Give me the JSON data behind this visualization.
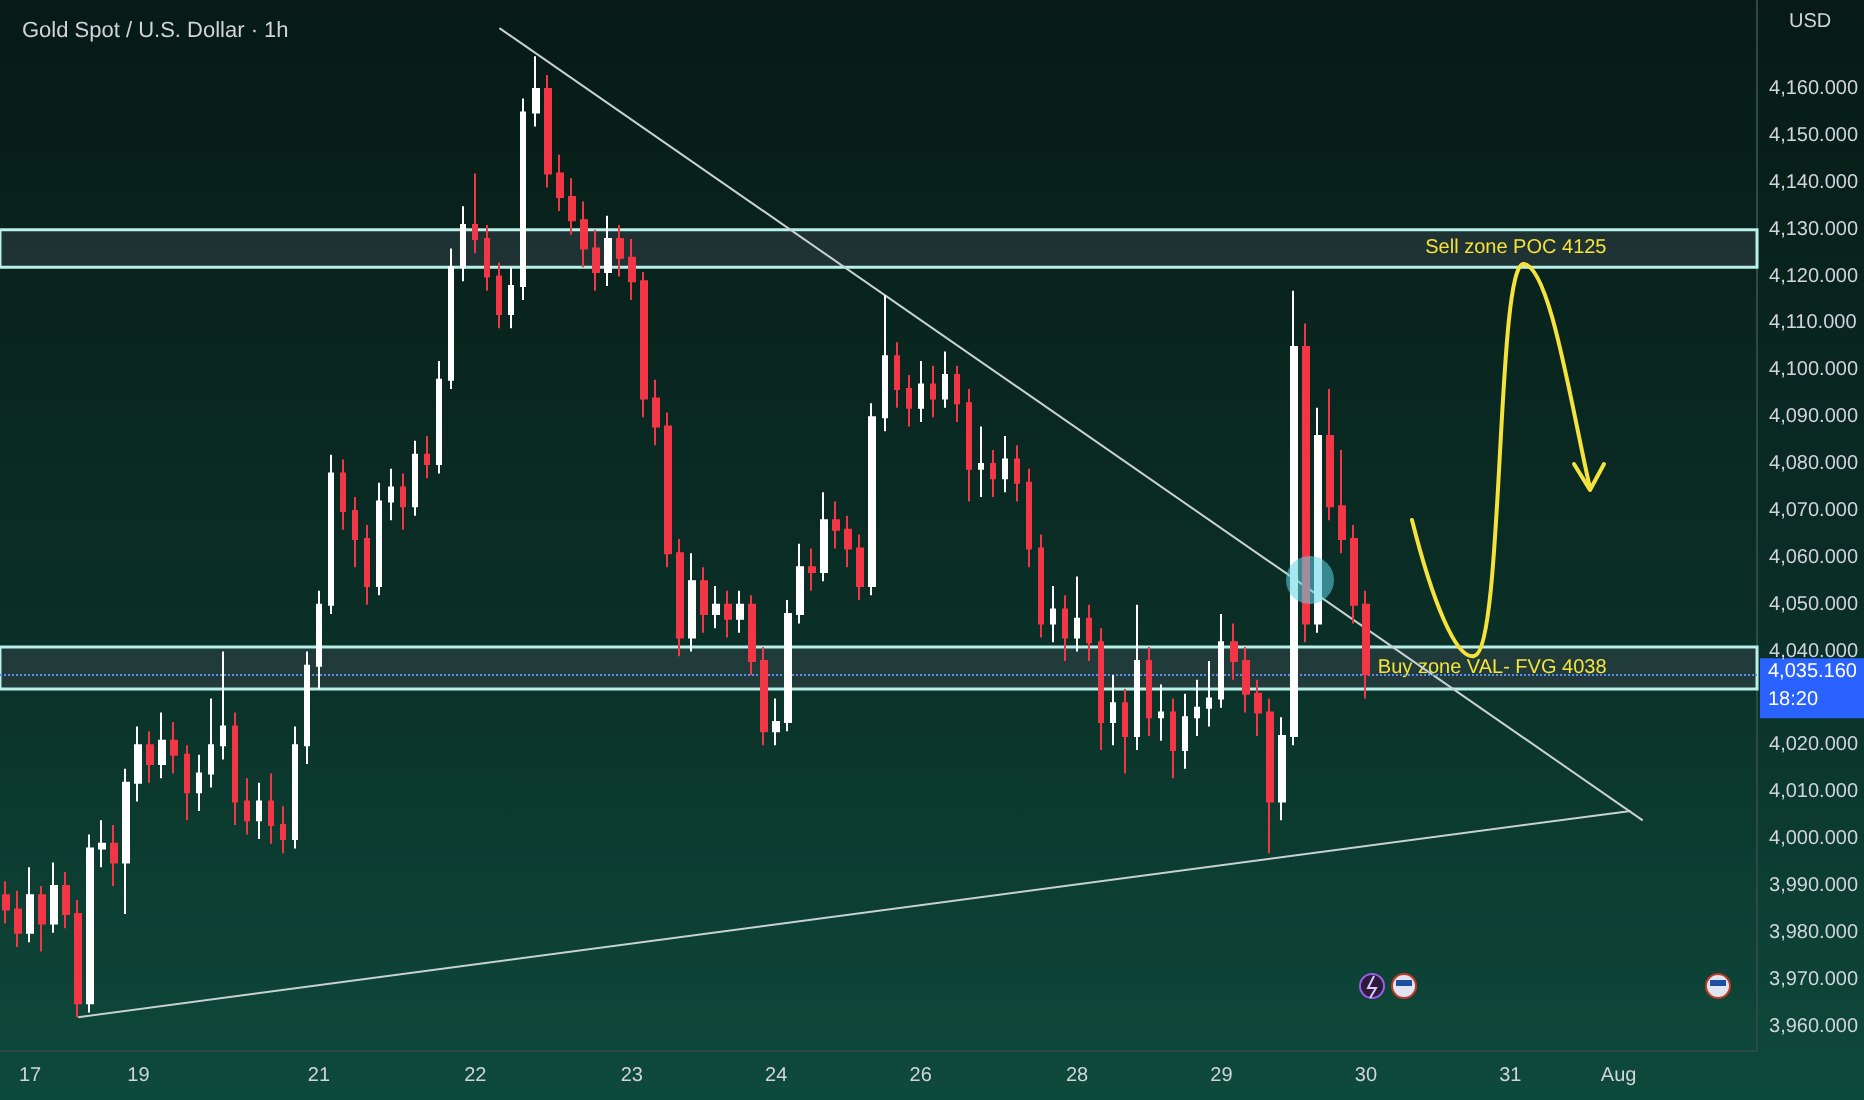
{
  "chart_data": {
    "type": "candlestick",
    "title": "Gold Spot / U.S. Dollar · 1h",
    "ylabel": "USD",
    "categories": [
      null,
      null,
      "17",
      null,
      null,
      null,
      null,
      null,
      null,
      null,
      null,
      "19",
      null,
      null,
      null,
      null,
      null,
      null,
      null,
      null,
      null,
      null,
      null,
      null,
      null,
      null,
      "21",
      null,
      null,
      null,
      null,
      null,
      null,
      null,
      null,
      null,
      null,
      null,
      null,
      "22",
      null,
      null,
      null,
      null,
      null,
      null,
      null,
      null,
      null,
      null,
      null,
      null,
      "23",
      null,
      null,
      null,
      null,
      null,
      null,
      null,
      null,
      null,
      null,
      null,
      "24",
      null,
      null,
      null,
      null,
      null,
      null,
      null,
      null,
      null,
      null,
      null,
      "26",
      null,
      null,
      null,
      null,
      null,
      null,
      null,
      null,
      null,
      null,
      null,
      null,
      "28",
      null,
      null,
      null,
      null,
      null,
      null,
      null,
      null,
      null,
      null,
      null,
      "29",
      null,
      null,
      null,
      null,
      null,
      null,
      null,
      null,
      null,
      null,
      null,
      "30",
      null,
      null,
      null,
      null,
      null,
      null,
      null,
      null,
      null,
      null,
      null,
      "31",
      null,
      null,
      null,
      null,
      null,
      null,
      null,
      null,
      "Aug",
      null,
      null,
      null,
      null,
      null,
      null,
      null,
      null,
      null,
      null,
      null
    ],
    "ohlc": [
      [
        3988,
        3991,
        3982,
        3985
      ],
      [
        3985,
        3989,
        3977,
        3980
      ],
      [
        3980,
        3994,
        3978,
        3988
      ],
      [
        3988,
        3990,
        3976,
        3982
      ],
      [
        3982,
        3995,
        3980,
        3990
      ],
      [
        3990,
        3993,
        3981,
        3984
      ],
      [
        3984,
        3987,
        3962,
        3965
      ],
      [
        3965,
        4001,
        3963,
        3998
      ],
      [
        3998,
        4004,
        3994,
        3999
      ],
      [
        3999,
        4003,
        3990,
        3995
      ],
      [
        3995,
        4015,
        3984,
        4012
      ],
      [
        4012,
        4024,
        4008,
        4020
      ],
      [
        4020,
        4023,
        4012,
        4016
      ],
      [
        4016,
        4027,
        4013,
        4021
      ],
      [
        4021,
        4025,
        4014,
        4018
      ],
      [
        4018,
        4020,
        4004,
        4010
      ],
      [
        4010,
        4018,
        4006,
        4014
      ],
      [
        4014,
        4030,
        4011,
        4020
      ],
      [
        4020,
        4040,
        4017,
        4024
      ],
      [
        4024,
        4027,
        4003,
        4008
      ],
      [
        4008,
        4013,
        4001,
        4004
      ],
      [
        4004,
        4012,
        4000,
        4008
      ],
      [
        4008,
        4014,
        3999,
        4003
      ],
      [
        4003,
        4007,
        3997,
        4000
      ],
      [
        4000,
        4024,
        3998,
        4020
      ],
      [
        4020,
        4040,
        4016,
        4037
      ],
      [
        4037,
        4053,
        4032,
        4050
      ],
      [
        4050,
        4082,
        4048,
        4078
      ],
      [
        4078,
        4081,
        4066,
        4070
      ],
      [
        4070,
        4073,
        4058,
        4064
      ],
      [
        4064,
        4067,
        4050,
        4054
      ],
      [
        4054,
        4076,
        4052,
        4072
      ],
      [
        4072,
        4079,
        4068,
        4075
      ],
      [
        4075,
        4078,
        4066,
        4071
      ],
      [
        4071,
        4085,
        4069,
        4082
      ],
      [
        4082,
        4086,
        4077,
        4080
      ],
      [
        4080,
        4102,
        4078,
        4098
      ],
      [
        4098,
        4126,
        4096,
        4122
      ],
      [
        4122,
        4135,
        4119,
        4131
      ],
      [
        4131,
        4142,
        4125,
        4128
      ],
      [
        4128,
        4131,
        4117,
        4120
      ],
      [
        4120,
        4123,
        4109,
        4112
      ],
      [
        4112,
        4122,
        4109,
        4118
      ],
      [
        4118,
        4158,
        4115,
        4155
      ],
      [
        4155,
        4167,
        4152,
        4160
      ],
      [
        4160,
        4163,
        4139,
        4142
      ],
      [
        4142,
        4146,
        4134,
        4137
      ],
      [
        4137,
        4141,
        4129,
        4132
      ],
      [
        4132,
        4136,
        4122,
        4126
      ],
      [
        4126,
        4130,
        4117,
        4121
      ],
      [
        4121,
        4133,
        4118,
        4128
      ],
      [
        4128,
        4131,
        4120,
        4124
      ],
      [
        4124,
        4128,
        4115,
        4119
      ],
      [
        4119,
        4121,
        4090,
        4094
      ],
      [
        4094,
        4098,
        4084,
        4088
      ],
      [
        4088,
        4091,
        4058,
        4061
      ],
      [
        4061,
        4064,
        4039,
        4043
      ],
      [
        4043,
        4061,
        4040,
        4055
      ],
      [
        4055,
        4058,
        4044,
        4048
      ],
      [
        4048,
        4054,
        4045,
        4050
      ],
      [
        4050,
        4053,
        4043,
        4047
      ],
      [
        4047,
        4053,
        4044,
        4050
      ],
      [
        4050,
        4052,
        4035,
        4038
      ],
      [
        4038,
        4041,
        4020,
        4023
      ],
      [
        4023,
        4030,
        4020,
        4025
      ],
      [
        4025,
        4051,
        4023,
        4048
      ],
      [
        4048,
        4063,
        4046,
        4058
      ],
      [
        4058,
        4062,
        4053,
        4057
      ],
      [
        4057,
        4074,
        4055,
        4068
      ],
      [
        4068,
        4072,
        4062,
        4066
      ],
      [
        4066,
        4069,
        4058,
        4062
      ],
      [
        4062,
        4065,
        4051,
        4054
      ],
      [
        4054,
        4093,
        4052,
        4090
      ],
      [
        4090,
        4116,
        4087,
        4103
      ],
      [
        4103,
        4106,
        4092,
        4096
      ],
      [
        4096,
        4099,
        4088,
        4092
      ],
      [
        4092,
        4102,
        4089,
        4097
      ],
      [
        4097,
        4101,
        4090,
        4094
      ],
      [
        4094,
        4104,
        4092,
        4099
      ],
      [
        4099,
        4101,
        4089,
        4093
      ],
      [
        4093,
        4096,
        4072,
        4079
      ],
      [
        4079,
        4088,
        4073,
        4080
      ],
      [
        4080,
        4083,
        4073,
        4077
      ],
      [
        4077,
        4086,
        4074,
        4081
      ],
      [
        4081,
        4084,
        4072,
        4076
      ],
      [
        4076,
        4079,
        4058,
        4062
      ],
      [
        4062,
        4065,
        4043,
        4046
      ],
      [
        4046,
        4054,
        4042,
        4049
      ],
      [
        4049,
        4052,
        4038,
        4043
      ],
      [
        4043,
        4056,
        4040,
        4047
      ],
      [
        4047,
        4050,
        4038,
        4042
      ],
      [
        4042,
        4045,
        4019,
        4025
      ],
      [
        4025,
        4035,
        4020,
        4029
      ],
      [
        4029,
        4032,
        4014,
        4022
      ],
      [
        4022,
        4050,
        4019,
        4038
      ],
      [
        4038,
        4041,
        4022,
        4026
      ],
      [
        4026,
        4033,
        4021,
        4027
      ],
      [
        4027,
        4030,
        4013,
        4019
      ],
      [
        4019,
        4031,
        4015,
        4026
      ],
      [
        4026,
        4034,
        4022,
        4028
      ],
      [
        4028,
        4038,
        4024,
        4030
      ],
      [
        4030,
        4048,
        4028,
        4042
      ],
      [
        4042,
        4046,
        4034,
        4038
      ],
      [
        4038,
        4041,
        4027,
        4031
      ],
      [
        4031,
        4034,
        4022,
        4027
      ],
      [
        4027,
        4030,
        3997,
        4008
      ],
      [
        4008,
        4026,
        4004,
        4022
      ],
      [
        4022,
        4117,
        4020,
        4105
      ],
      [
        4105,
        4110,
        4042,
        4046
      ],
      [
        4046,
        4092,
        4044,
        4086
      ],
      [
        4086,
        4096,
        4068,
        4071
      ],
      [
        4071,
        4083,
        4061,
        4064
      ],
      [
        4064,
        4067,
        4046,
        4050
      ],
      [
        4050,
        4053,
        4030,
        4035.16
      ],
      null,
      null,
      null,
      null,
      null,
      null,
      null,
      null,
      null,
      null,
      null,
      null,
      null,
      null,
      null,
      null,
      null,
      null,
      null,
      null,
      null,
      null,
      null,
      null,
      null,
      null,
      null,
      null,
      null,
      null,
      null,
      null
    ],
    "series": [
      {
        "type": "line",
        "color": "#c9d2d2",
        "values": [
          null,
          null,
          null,
          null,
          null,
          null,
          null,
          null,
          null,
          null,
          null,
          null,
          null,
          null,
          null,
          null,
          null,
          null,
          null,
          null,
          null,
          null,
          null,
          null,
          null,
          null,
          null,
          null,
          null,
          null,
          null,
          null,
          null,
          null,
          null,
          null,
          null,
          null,
          null,
          null,
          null,
          4173,
          null,
          null,
          null,
          null,
          null,
          null,
          null,
          null,
          null,
          null,
          null,
          null,
          null,
          null,
          null,
          null,
          null,
          null,
          null,
          null,
          null,
          null,
          null,
          null,
          null,
          null,
          null,
          null,
          null,
          null,
          null,
          null,
          null,
          null,
          null,
          null,
          null,
          null,
          null,
          null,
          null,
          null,
          null,
          null,
          null,
          null,
          null,
          null,
          null,
          null,
          null,
          null,
          null,
          null,
          null,
          null,
          null,
          null,
          null,
          null,
          null,
          null,
          null,
          null,
          null,
          null,
          null,
          null,
          null,
          null,
          null,
          null,
          null,
          null,
          null,
          null,
          null,
          null,
          null,
          null,
          null,
          null,
          null,
          null,
          null,
          null,
          null,
          null,
          null,
          null,
          null,
          null,
          null,
          null,
          4004,
          null,
          null,
          null,
          null,
          null,
          null,
          null,
          null,
          null
        ]
      },
      {
        "type": "line",
        "color": "#c9d2d2",
        "values": [
          null,
          null,
          null,
          null,
          null,
          null,
          3962,
          null,
          null,
          null,
          null,
          null,
          null,
          null,
          null,
          null,
          null,
          null,
          null,
          null,
          null,
          null,
          null,
          null,
          null,
          null,
          null,
          null,
          null,
          null,
          null,
          null,
          null,
          null,
          null,
          null,
          null,
          null,
          null,
          null,
          null,
          null,
          null,
          null,
          null,
          null,
          null,
          null,
          null,
          null,
          null,
          null,
          null,
          null,
          null,
          null,
          null,
          null,
          null,
          null,
          null,
          null,
          null,
          null,
          null,
          null,
          null,
          null,
          null,
          null,
          null,
          null,
          null,
          null,
          null,
          null,
          null,
          null,
          null,
          null,
          null,
          null,
          null,
          null,
          null,
          null,
          null,
          null,
          null,
          null,
          null,
          null,
          null,
          null,
          null,
          null,
          null,
          null,
          null,
          null,
          null,
          null,
          null,
          null,
          null,
          null,
          null,
          null,
          null,
          null,
          null,
          null,
          null,
          null,
          null,
          null,
          null,
          null,
          null,
          null,
          null,
          null,
          null,
          null,
          null,
          null,
          null,
          null,
          null,
          null,
          null,
          null,
          null,
          null,
          null,
          4006,
          null,
          null,
          null,
          null,
          null,
          null,
          null,
          null,
          null,
          null
        ]
      }
    ],
    "ylim": [
      3955,
      4179
    ],
    "yticks": [
      {
        "value": 3960,
        "label": "3,960.000"
      },
      {
        "value": 3970,
        "label": "3,970.000"
      },
      {
        "value": 3980,
        "label": "3,980.000"
      },
      {
        "value": 3990,
        "label": "3,990.000"
      },
      {
        "value": 4000,
        "label": "4,000.000"
      },
      {
        "value": 4010,
        "label": "4,010.000"
      },
      {
        "value": 4020,
        "label": "4,020.000"
      },
      {
        "value": 4040,
        "label": "4,040.000"
      },
      {
        "value": 4050,
        "label": "4,050.000"
      },
      {
        "value": 4060,
        "label": "4,060.000"
      },
      {
        "value": 4070,
        "label": "4,070.000"
      },
      {
        "value": 4080,
        "label": "4,080.000"
      },
      {
        "value": 4090,
        "label": "4,090.000"
      },
      {
        "value": 4100,
        "label": "4,100.000"
      },
      {
        "value": 4110,
        "label": "4,110.000"
      },
      {
        "value": 4120,
        "label": "4,120.000"
      },
      {
        "value": 4130,
        "label": "4,130.000"
      },
      {
        "value": 4140,
        "label": "4,140.000"
      },
      {
        "value": 4150,
        "label": "4,150.000"
      },
      {
        "value": 4160,
        "label": "4,160.000"
      }
    ],
    "bands": [
      {
        "axis": "y",
        "from": 4122,
        "to": 4130,
        "label": "Sell zone POC 4125",
        "color": "#b8f0ea"
      },
      {
        "axis": "y",
        "from": 4032,
        "to": 4041,
        "label": "Buy zone VAL- FVG 4038",
        "color": "#b8f0ea"
      }
    ],
    "ref_lines": [
      {
        "axis": "y",
        "value": 4035.16,
        "color": "#5b8def",
        "line_style": "dotted"
      }
    ],
    "annotations": [
      "4,035.160",
      "18:20"
    ],
    "grid": false
  }
}
